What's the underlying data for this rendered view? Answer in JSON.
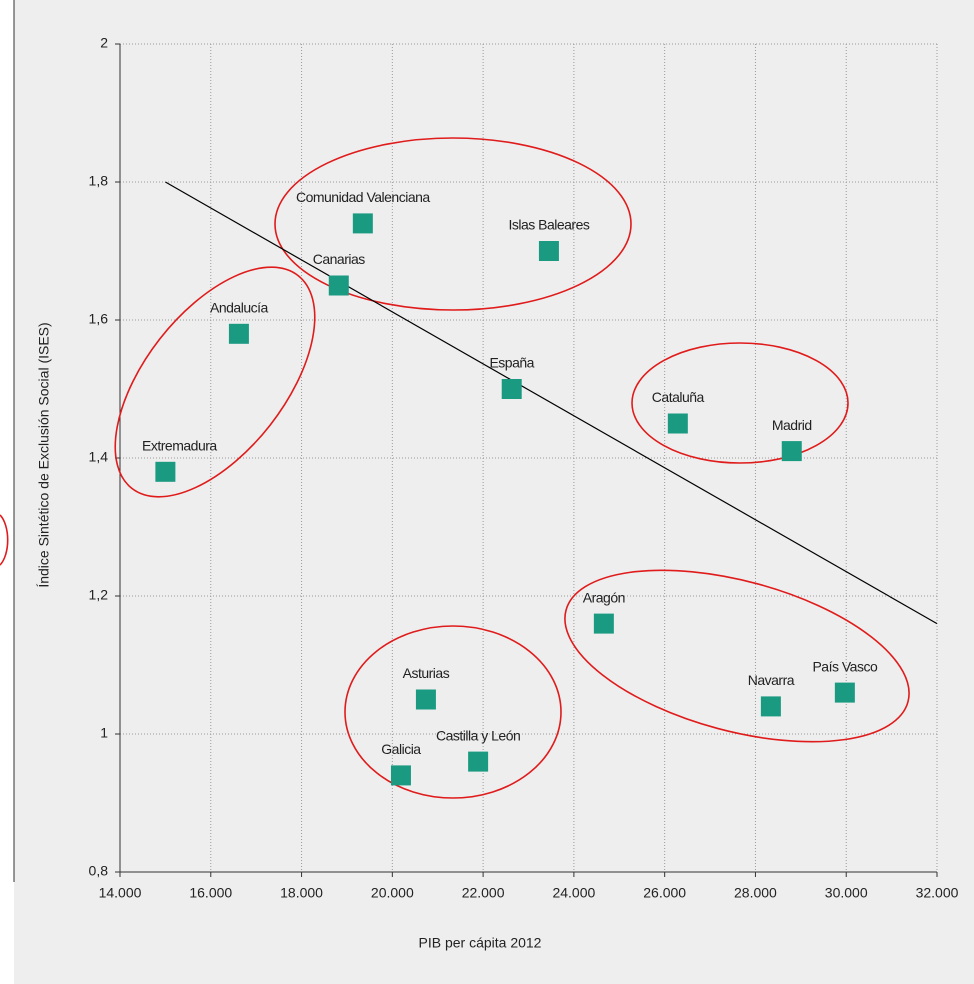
{
  "chart_data": {
    "type": "scatter",
    "x_label": "PIB per cápita 2012",
    "y_label": "Índice Sintético de Exclusión Social (ISES)",
    "color": "#1b9a82",
    "labels": [
      "Extremadura",
      "Andalucía",
      "Canarias",
      "Comunidad Valenciana",
      "Islas Baleares",
      "España",
      "Cataluña",
      "Madrid",
      "Aragón",
      "Navarra",
      "País Vasco",
      "Asturias",
      "Castilla y León",
      "Galicia"
    ],
    "x": [
      15000,
      16620,
      18820,
      19350,
      23450,
      22630,
      26290,
      28800,
      24660,
      28340,
      29970,
      20740,
      21890,
      20190
    ],
    "values": [
      1.38,
      1.58,
      1.65,
      1.74,
      1.7,
      1.5,
      1.45,
      1.41,
      1.16,
      1.04,
      1.06,
      1.05,
      0.96,
      0.94
    ],
    "trend_line": {
      "x": [
        15000,
        32000
      ],
      "values": [
        1.8,
        1.16
      ]
    },
    "xlim": [
      14000,
      32000
    ],
    "xticks": [
      {
        "value": 14000,
        "label": "14.000"
      },
      {
        "value": 16000,
        "label": "16.000"
      },
      {
        "value": 18000,
        "label": "18.000"
      },
      {
        "value": 20000,
        "label": "20.000"
      },
      {
        "value": 22000,
        "label": "22.000"
      },
      {
        "value": 24000,
        "label": "24.000"
      },
      {
        "value": 26000,
        "label": "26.000"
      },
      {
        "value": 28000,
        "label": "28.000"
      },
      {
        "value": 30000,
        "label": "30.000"
      },
      {
        "value": 32000,
        "label": "32.000"
      }
    ],
    "ylim": [
      0.8,
      2
    ],
    "yticks": [
      {
        "value": 0.8,
        "label": "0,8"
      },
      1,
      {
        "value": 1.2,
        "label": "1,2"
      },
      {
        "value": 1.4,
        "label": "1,4"
      },
      {
        "value": 1.6,
        "label": "1,6"
      },
      {
        "value": 1.8,
        "label": "1,8"
      },
      2
    ],
    "grid": true
  }
}
